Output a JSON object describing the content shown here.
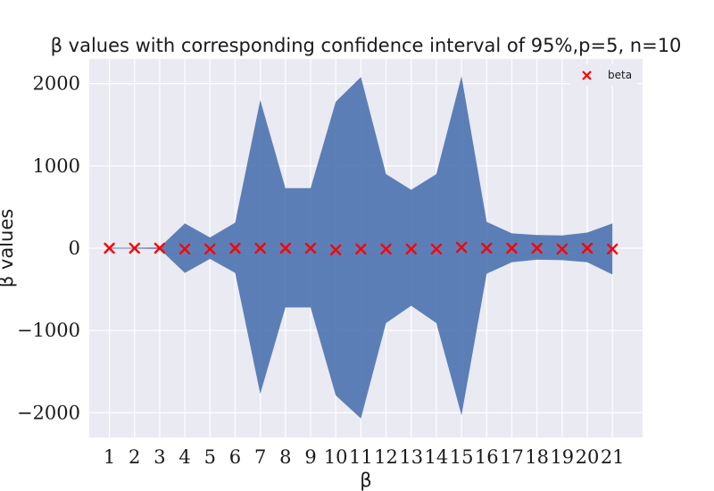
{
  "chart_data": {
    "type": "area",
    "title": "β values with corresponding confidence interval of 95%,p=5, n=10",
    "xlabel": "β",
    "ylabel": "β values",
    "x": [
      1,
      2,
      3,
      4,
      5,
      6,
      7,
      8,
      9,
      10,
      11,
      12,
      13,
      14,
      15,
      16,
      17,
      18,
      19,
      20,
      21
    ],
    "xlim": [
      0.2,
      22.2
    ],
    "ylim": [
      -2300,
      2300
    ],
    "yticks": [
      -2000,
      -1000,
      0,
      1000,
      2000
    ],
    "ytick_labels": [
      "−2000",
      "−1000",
      "0",
      "1000",
      "2000"
    ],
    "grid": true,
    "legend_position": "top-right",
    "series": [
      {
        "name": "beta",
        "kind": "scatter",
        "marker": "x",
        "color": "#ff0000",
        "values": [
          0,
          0,
          0,
          -10,
          -10,
          0,
          0,
          0,
          0,
          -20,
          -10,
          -10,
          -10,
          -10,
          10,
          0,
          0,
          0,
          -10,
          0,
          -10
        ]
      }
    ],
    "confidence_band": {
      "color": "#4c72b0",
      "lower": [
        -5,
        -5,
        -10,
        -300,
        -130,
        -300,
        -1770,
        -720,
        -720,
        -1790,
        -2070,
        -910,
        -700,
        -910,
        -2030,
        -310,
        -170,
        -140,
        -145,
        -170,
        -320
      ],
      "upper": [
        5,
        5,
        10,
        300,
        130,
        310,
        1800,
        730,
        730,
        1780,
        2080,
        900,
        710,
        900,
        2090,
        320,
        180,
        160,
        155,
        190,
        300
      ]
    }
  },
  "colors": {
    "plot_bg": "#eaeaf2",
    "grid": "#ffffff",
    "band": "#4c72b0",
    "marker": "#ff0000"
  }
}
